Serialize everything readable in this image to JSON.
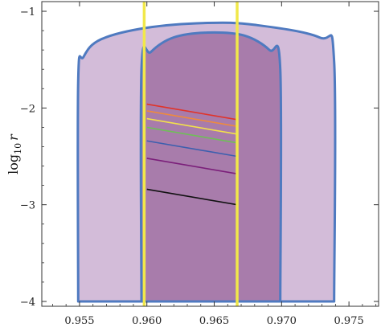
{
  "chart_data": {
    "type": "area",
    "xlabel": "",
    "ylabel": "log10 r",
    "ylabel_parts": {
      "base": "log",
      "sub": "10",
      "var": "r"
    },
    "xlim": [
      0.9522,
      0.9772
    ],
    "ylim": [
      -4.05,
      -0.9
    ],
    "xticks": [
      0.955,
      0.96,
      0.965,
      0.97,
      0.975
    ],
    "xtick_labels": [
      "0.955",
      "0.960",
      "0.965",
      "0.970",
      "0.975"
    ],
    "yticks": [
      -4,
      -3,
      -2,
      -1
    ],
    "ytick_labels": [
      "−4",
      "−3",
      "−2",
      "−1"
    ],
    "grid": false,
    "legend": "none",
    "regions": [
      {
        "level": "outer",
        "fill": "#d3bcd9",
        "stroke": "#4f7ac0",
        "x": [
          0.9549,
          0.9549,
          0.9553,
          0.9566,
          0.96,
          0.9645,
          0.968,
          0.9728,
          0.9739,
          0.9739,
          0.9549
        ],
        "y": [
          -4.0,
          -1.72,
          -1.47,
          -1.29,
          -1.17,
          -1.12,
          -1.14,
          -1.27,
          -1.52,
          -4.0,
          -4.0
        ]
      },
      {
        "level": "inner",
        "fill": "#a87cab",
        "stroke": "#4f7ac0",
        "x": [
          0.9596,
          0.9596,
          0.9603,
          0.962,
          0.9645,
          0.9672,
          0.9691,
          0.9699,
          0.9699,
          0.9596
        ],
        "y": [
          -4.0,
          -1.6,
          -1.42,
          -1.27,
          -1.22,
          -1.25,
          -1.4,
          -1.6,
          -4.0,
          -4.0
        ]
      }
    ],
    "vertical_lines": [
      {
        "x": 0.9598,
        "color": "#f1e84a"
      },
      {
        "x": 0.9667,
        "color": "#f1e84a"
      }
    ],
    "series": [
      {
        "color": "#e0342a",
        "x": [
          0.96,
          0.9667
        ],
        "y": [
          -1.96,
          -2.12
        ]
      },
      {
        "color": "#ee8a3e",
        "x": [
          0.96,
          0.9667
        ],
        "y": [
          -2.03,
          -2.19
        ]
      },
      {
        "color": "#f3e14a",
        "x": [
          0.96,
          0.9667
        ],
        "y": [
          -2.11,
          -2.27
        ]
      },
      {
        "color": "#6fbf58",
        "x": [
          0.96,
          0.9667
        ],
        "y": [
          -2.2,
          -2.36
        ]
      },
      {
        "color": "#3c5fae",
        "x": [
          0.96,
          0.9667
        ],
        "y": [
          -2.34,
          -2.5
        ]
      },
      {
        "color": "#7b1f7a",
        "x": [
          0.96,
          0.9667
        ],
        "y": [
          -2.52,
          -2.68
        ]
      },
      {
        "color": "#111111",
        "x": [
          0.96,
          0.9667
        ],
        "y": [
          -2.84,
          -3.0
        ]
      }
    ]
  }
}
